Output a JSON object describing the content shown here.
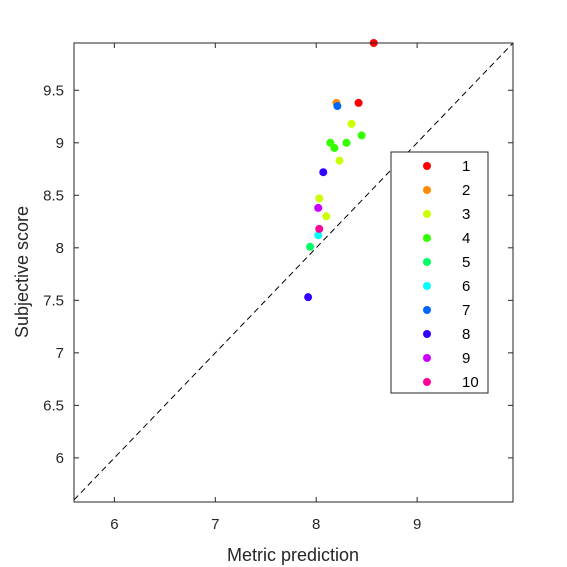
{
  "chart_data": {
    "type": "scatter",
    "title": "",
    "xlabel": "Metric prediction",
    "ylabel": "Subjective score",
    "xlim": [
      5.6,
      9.95
    ],
    "ylim": [
      5.58,
      9.95
    ],
    "xticks": [
      6,
      7,
      8,
      9
    ],
    "yticks": [
      6,
      6.5,
      7,
      7.5,
      8,
      8.5,
      9,
      9.5
    ],
    "xtick_labels": [
      "6",
      "7",
      "8",
      "9"
    ],
    "ytick_labels": [
      "6",
      "6.5",
      "7",
      "7.5",
      "8",
      "8.5",
      "9",
      "9.5"
    ],
    "grid": false,
    "legend_position": "right",
    "reference_line": {
      "style": "dashed",
      "from": [
        5.6,
        5.6
      ],
      "to": [
        9.95,
        9.95
      ]
    },
    "series": [
      {
        "name": "1",
        "color": "#ff0000",
        "points": [
          [
            8.57,
            9.95
          ],
          [
            8.42,
            9.38
          ]
        ]
      },
      {
        "name": "2",
        "color": "#ff8c00",
        "points": [
          [
            8.2,
            9.38
          ]
        ]
      },
      {
        "name": "3",
        "color": "#ccff00",
        "points": [
          [
            8.35,
            9.18
          ],
          [
            8.23,
            8.83
          ],
          [
            8.03,
            8.47
          ],
          [
            8.1,
            8.3
          ]
        ]
      },
      {
        "name": "4",
        "color": "#33ff00",
        "points": [
          [
            8.14,
            9.0
          ],
          [
            8.3,
            9.0
          ],
          [
            8.45,
            9.07
          ],
          [
            8.18,
            8.95
          ]
        ]
      },
      {
        "name": "5",
        "color": "#00ff66",
        "points": [
          [
            7.94,
            8.01
          ]
        ]
      },
      {
        "name": "6",
        "color": "#00ffff",
        "points": [
          [
            8.02,
            8.12
          ]
        ]
      },
      {
        "name": "7",
        "color": "#0066ff",
        "points": [
          [
            8.21,
            9.35
          ]
        ]
      },
      {
        "name": "8",
        "color": "#3300ff",
        "points": [
          [
            8.07,
            8.72
          ],
          [
            7.92,
            7.53
          ]
        ]
      },
      {
        "name": "9",
        "color": "#cc00ff",
        "points": [
          [
            8.02,
            8.38
          ]
        ]
      },
      {
        "name": "10",
        "color": "#ff0099",
        "points": [
          [
            8.03,
            8.18
          ]
        ]
      }
    ]
  }
}
